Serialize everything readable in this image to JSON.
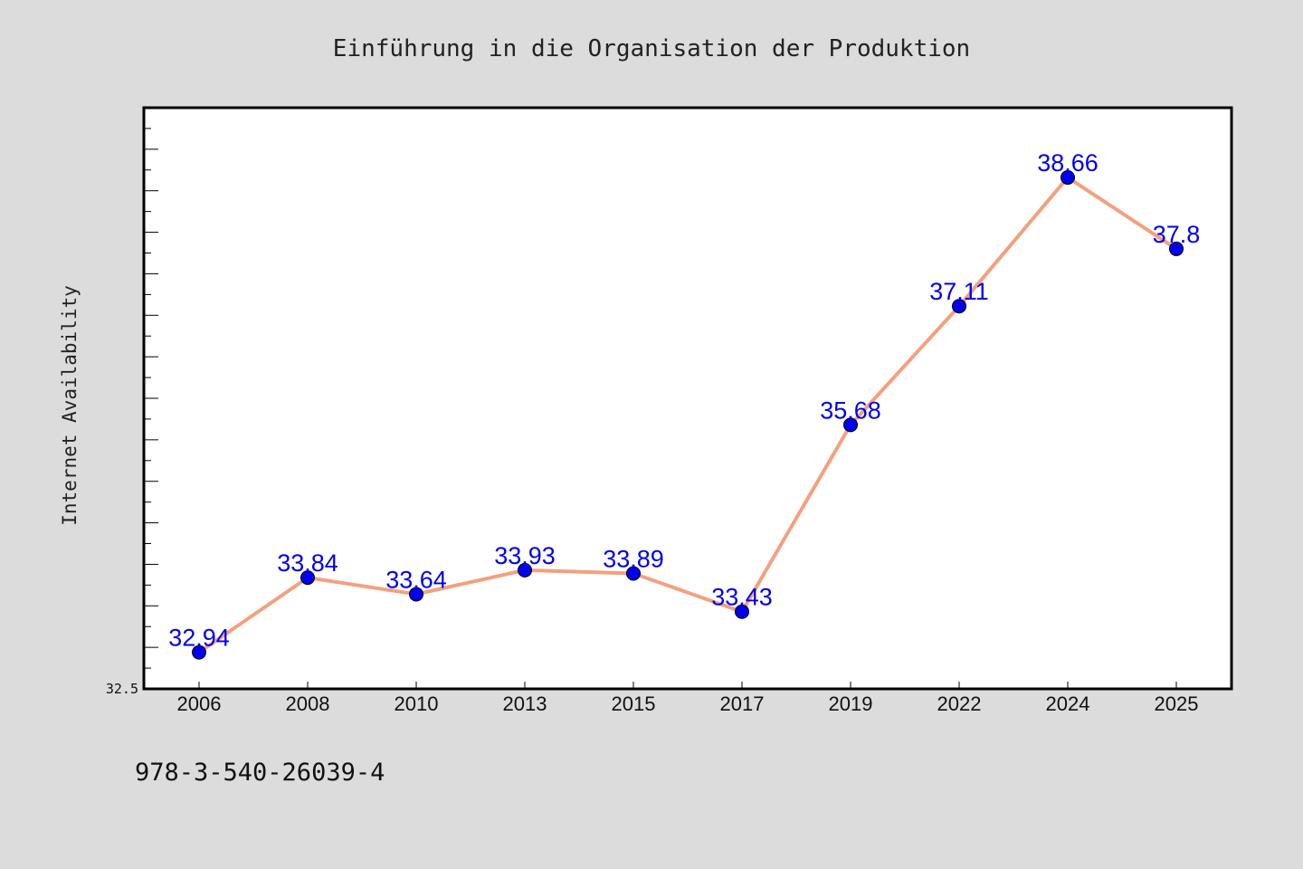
{
  "chart_data": {
    "type": "line",
    "title": "Einführung in die Organisation der Produktion",
    "xlabel": "",
    "ylabel": "Internet Availability",
    "categories": [
      "2006",
      "2008",
      "2010",
      "2013",
      "2015",
      "2017",
      "2019",
      "2022",
      "2024",
      "2025"
    ],
    "series": [
      {
        "values": [
          32.94,
          33.84,
          33.64,
          33.93,
          33.89,
          33.43,
          35.68,
          37.11,
          38.66,
          37.8
        ]
      }
    ],
    "data_labels": [
      "32.94",
      "33.84",
      "33.64",
      "33.93",
      "33.89",
      "33.43",
      "35.68",
      "37.11",
      "38.66",
      "37.8"
    ],
    "ylim": [
      32.5,
      39.5
    ],
    "yticks_labeled": [
      "32.5"
    ],
    "grid": false,
    "legend": "none",
    "colors": {
      "line": "#f4a07e",
      "marker": "#0000ee",
      "label": "#0000ee",
      "plot_background": "#ffffff",
      "page_background": "#dcdcdc"
    },
    "footer": "978-3-540-26039-4"
  }
}
